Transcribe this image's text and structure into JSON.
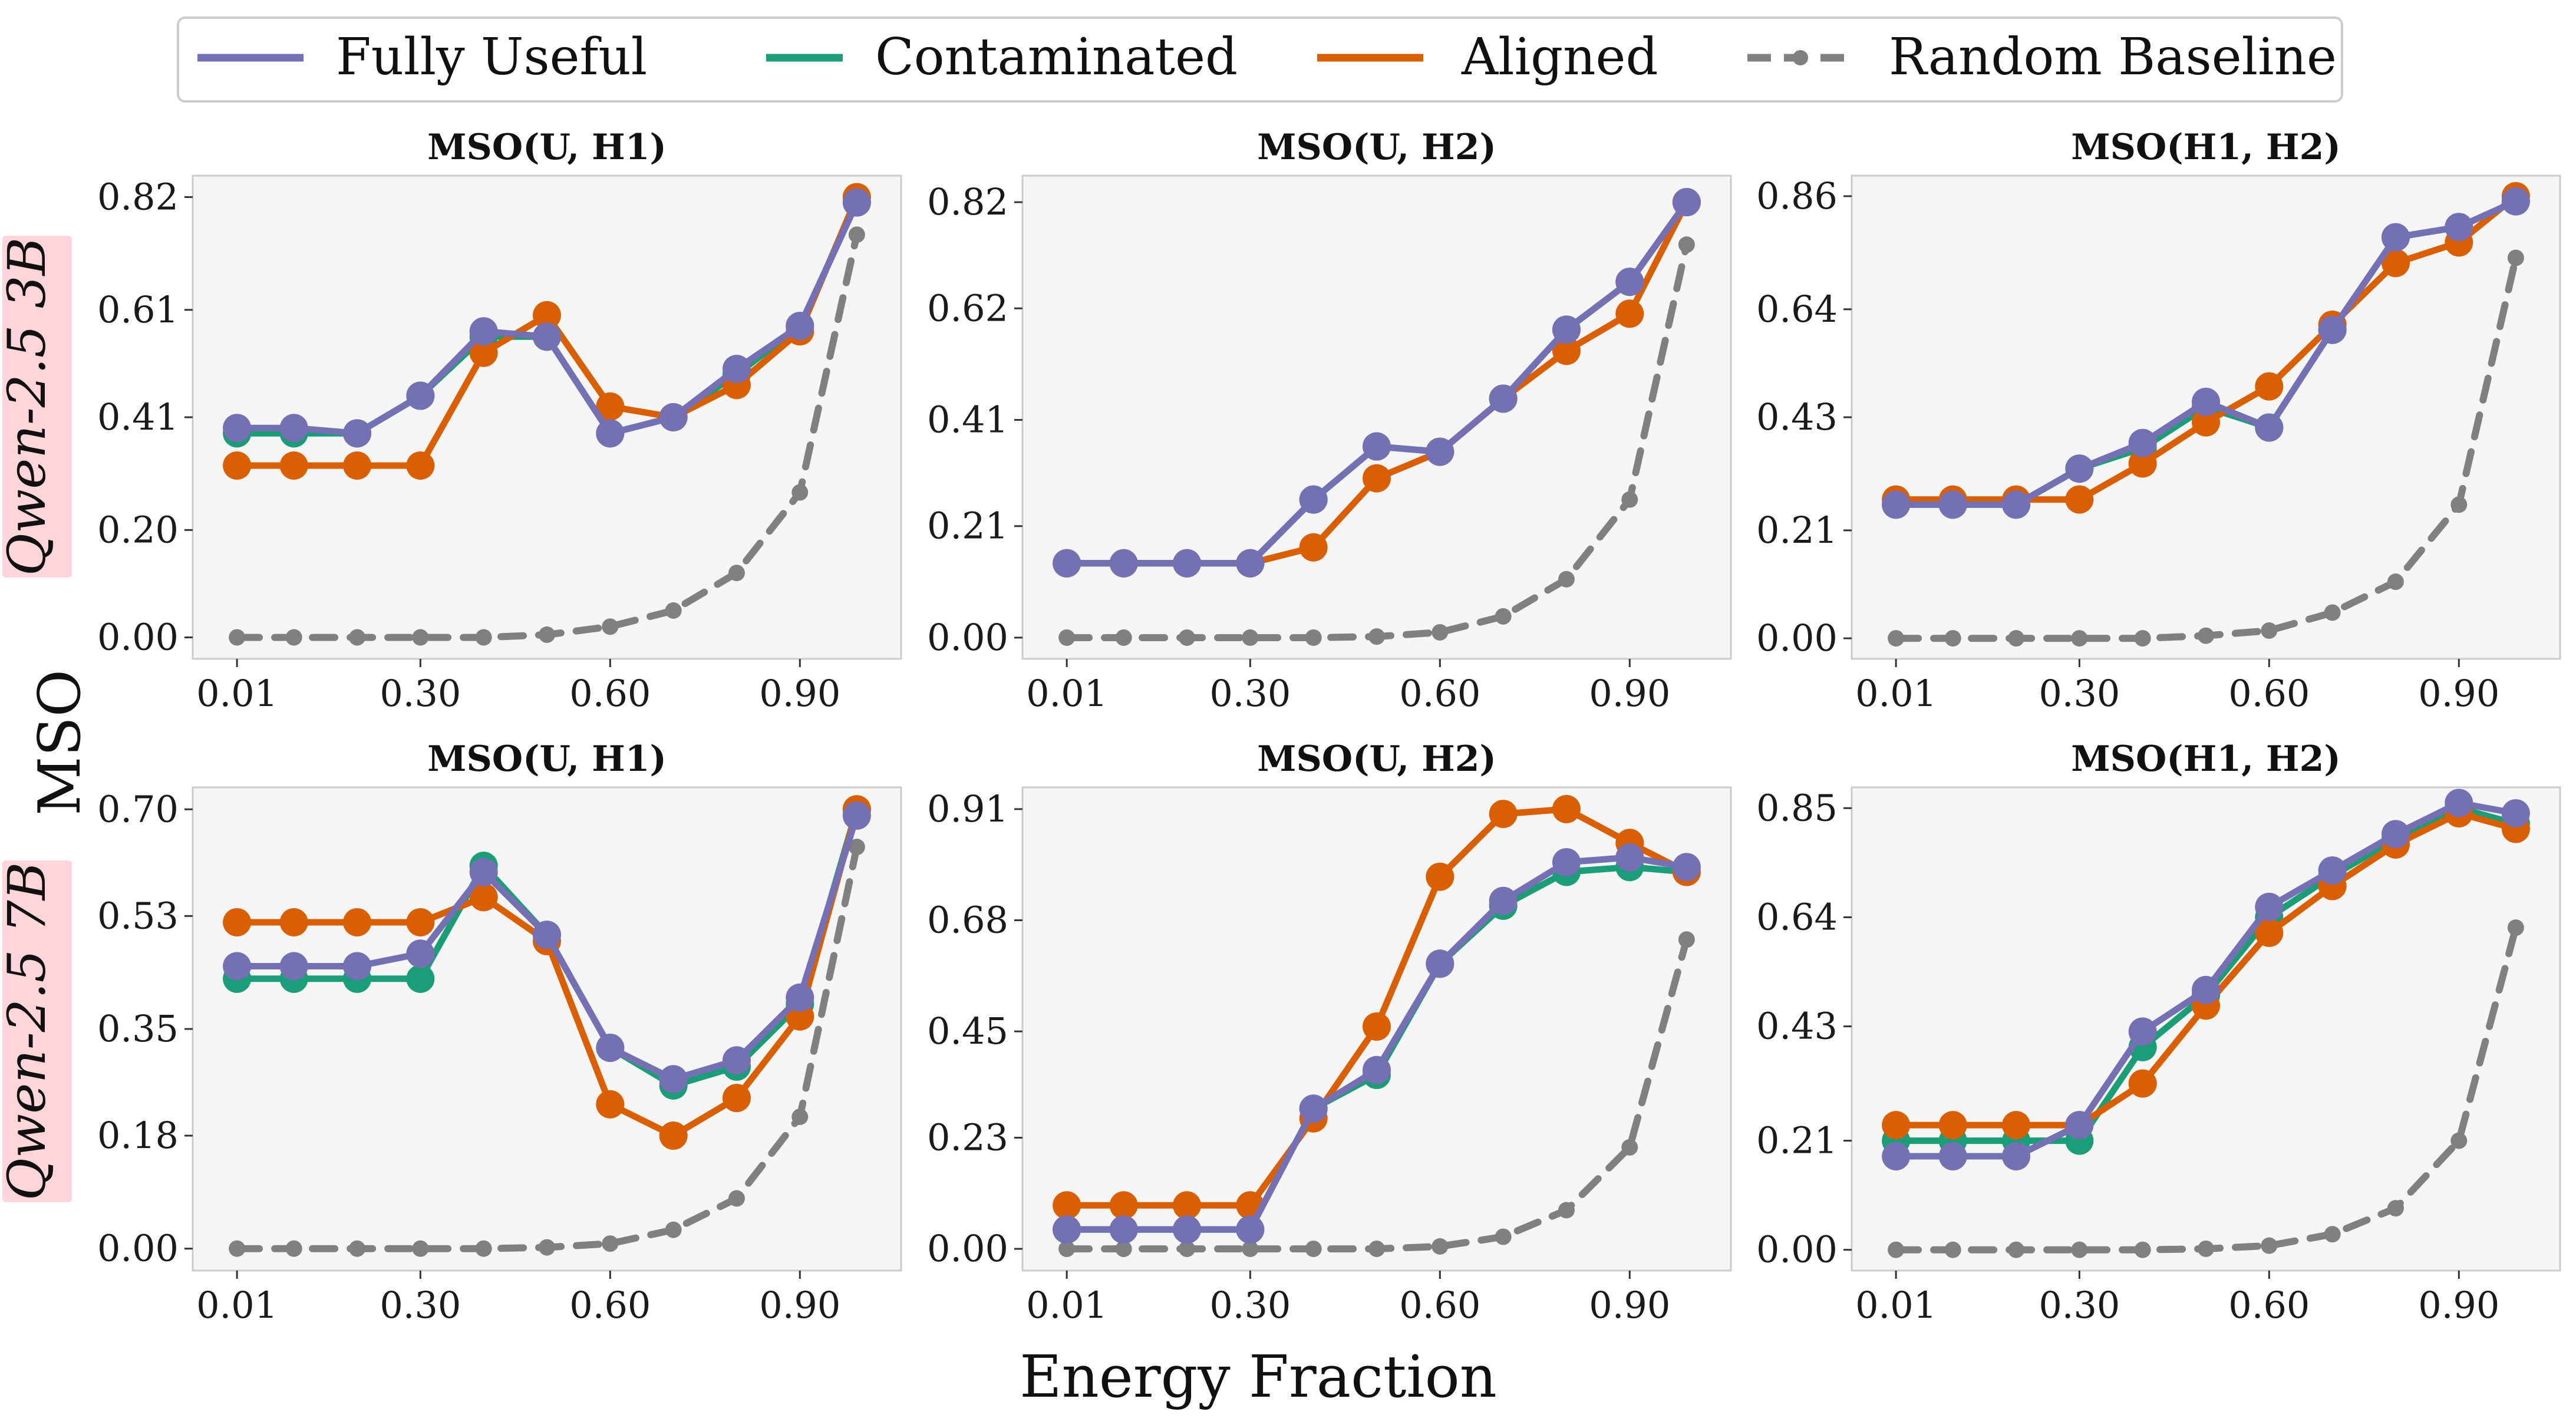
{
  "legend": [
    {
      "key": "fully_useful",
      "label": "Fully Useful"
    },
    {
      "key": "contaminated",
      "label": "Contaminated"
    },
    {
      "key": "aligned",
      "label": "Aligned"
    },
    {
      "key": "random",
      "label": "Random Baseline"
    }
  ],
  "colors": {
    "fully_useful": "#7570b3",
    "contaminated": "#1b9e77",
    "aligned": "#d95f02",
    "random": "#808080",
    "row_label_bg": "#ffd5dc",
    "panel_bg": "#f5f5f5"
  },
  "xlabel": "Energy Fraction",
  "ylabel": "MSO",
  "rows": [
    {
      "label": "Qwen-2.5 3B"
    },
    {
      "label": "Qwen-2.5 7B"
    }
  ],
  "chart_data": [
    {
      "type": "line",
      "title": "MSO(U, H1)",
      "row": 0,
      "col": 0,
      "x": [
        0.01,
        0.1,
        0.2,
        0.3,
        0.4,
        0.5,
        0.6,
        0.7,
        0.8,
        0.9,
        0.99
      ],
      "xticks": [
        0.01,
        0.3,
        0.6,
        0.9
      ],
      "xtick_labels": [
        "0.01",
        "0.30",
        "0.60",
        "0.90"
      ],
      "yticks": [
        0.0,
        0.2,
        0.41,
        0.61,
        0.82
      ],
      "ytick_labels": [
        "0.00",
        "0.20",
        "0.41",
        "0.61",
        "0.82"
      ],
      "ylim": [
        -0.04,
        0.86
      ],
      "xlim": [
        -0.06,
        1.06
      ],
      "series": [
        {
          "key": "contaminated",
          "name": "Contaminated",
          "values": [
            0.38,
            0.38,
            0.38,
            0.45,
            0.56,
            0.56,
            0.38,
            0.41,
            0.49,
            0.58,
            0.81
          ]
        },
        {
          "key": "aligned",
          "name": "Aligned",
          "values": [
            0.32,
            0.32,
            0.32,
            0.32,
            0.53,
            0.6,
            0.43,
            0.41,
            0.47,
            0.57,
            0.82
          ]
        },
        {
          "key": "fully_useful",
          "name": "Fully Useful",
          "values": [
            0.39,
            0.39,
            0.38,
            0.45,
            0.57,
            0.56,
            0.38,
            0.41,
            0.5,
            0.58,
            0.81
          ]
        },
        {
          "key": "random",
          "name": "Random Baseline",
          "values": [
            0.0,
            0.0,
            0.0,
            0.0,
            0.0,
            0.005,
            0.02,
            0.05,
            0.12,
            0.27,
            0.75
          ]
        }
      ]
    },
    {
      "type": "line",
      "title": "MSO(U, H2)",
      "row": 0,
      "col": 1,
      "x": [
        0.01,
        0.1,
        0.2,
        0.3,
        0.4,
        0.5,
        0.6,
        0.7,
        0.8,
        0.9,
        0.99
      ],
      "xticks": [
        0.01,
        0.3,
        0.6,
        0.9
      ],
      "xtick_labels": [
        "0.01",
        "0.30",
        "0.60",
        "0.90"
      ],
      "yticks": [
        0.0,
        0.21,
        0.41,
        0.62,
        0.82
      ],
      "ytick_labels": [
        "0.00",
        "0.21",
        "0.41",
        "0.62",
        "0.82"
      ],
      "ylim": [
        -0.04,
        0.87
      ],
      "xlim": [
        -0.06,
        1.06
      ],
      "series": [
        {
          "key": "contaminated",
          "name": "Contaminated",
          "values": [
            0.14,
            0.14,
            0.14,
            0.14,
            0.26,
            0.36,
            0.35,
            0.45,
            0.58,
            0.67,
            0.82
          ]
        },
        {
          "key": "aligned",
          "name": "Aligned",
          "values": [
            0.14,
            0.14,
            0.14,
            0.14,
            0.17,
            0.3,
            0.35,
            0.45,
            0.54,
            0.61,
            0.82
          ]
        },
        {
          "key": "fully_useful",
          "name": "Fully Useful",
          "values": [
            0.14,
            0.14,
            0.14,
            0.14,
            0.26,
            0.36,
            0.35,
            0.45,
            0.58,
            0.67,
            0.82
          ]
        },
        {
          "key": "random",
          "name": "Random Baseline",
          "values": [
            0.0,
            0.0,
            0.0,
            0.0,
            0.0,
            0.002,
            0.01,
            0.04,
            0.11,
            0.26,
            0.74
          ]
        }
      ]
    },
    {
      "type": "line",
      "title": "MSO(H1, H2)",
      "row": 0,
      "col": 2,
      "x": [
        0.01,
        0.1,
        0.2,
        0.3,
        0.4,
        0.5,
        0.6,
        0.7,
        0.8,
        0.9,
        0.99
      ],
      "xticks": [
        0.01,
        0.3,
        0.6,
        0.9
      ],
      "xtick_labels": [
        "0.01",
        "0.30",
        "0.60",
        "0.90"
      ],
      "yticks": [
        0.0,
        0.21,
        0.43,
        0.64,
        0.86
      ],
      "ytick_labels": [
        "0.00",
        "0.21",
        "0.43",
        "0.64",
        "0.86"
      ],
      "ylim": [
        -0.04,
        0.9
      ],
      "xlim": [
        -0.06,
        1.06
      ],
      "series": [
        {
          "key": "contaminated",
          "name": "Contaminated",
          "values": [
            0.26,
            0.26,
            0.26,
            0.33,
            0.37,
            0.45,
            0.41,
            0.6,
            0.78,
            0.8,
            0.85
          ]
        },
        {
          "key": "aligned",
          "name": "Aligned",
          "values": [
            0.27,
            0.27,
            0.27,
            0.27,
            0.34,
            0.42,
            0.49,
            0.61,
            0.73,
            0.77,
            0.86
          ]
        },
        {
          "key": "fully_useful",
          "name": "Fully Useful",
          "values": [
            0.26,
            0.26,
            0.26,
            0.33,
            0.38,
            0.46,
            0.41,
            0.6,
            0.78,
            0.8,
            0.85
          ]
        },
        {
          "key": "random",
          "name": "Random Baseline",
          "values": [
            0.0,
            0.0,
            0.0,
            0.0,
            0.0,
            0.005,
            0.015,
            0.05,
            0.11,
            0.26,
            0.74
          ]
        }
      ]
    },
    {
      "type": "line",
      "title": "MSO(U, H1)",
      "row": 1,
      "col": 0,
      "x": [
        0.01,
        0.1,
        0.2,
        0.3,
        0.4,
        0.5,
        0.6,
        0.7,
        0.8,
        0.9,
        0.99
      ],
      "xticks": [
        0.01,
        0.3,
        0.6,
        0.9
      ],
      "xtick_labels": [
        "0.01",
        "0.30",
        "0.60",
        "0.90"
      ],
      "yticks": [
        0.0,
        0.18,
        0.35,
        0.53,
        0.7
      ],
      "ytick_labels": [
        "0.00",
        "0.18",
        "0.35",
        "0.53",
        "0.70"
      ],
      "ylim": [
        -0.035,
        0.735
      ],
      "xlim": [
        -0.06,
        1.06
      ],
      "series": [
        {
          "key": "contaminated",
          "name": "Contaminated",
          "values": [
            0.43,
            0.43,
            0.43,
            0.43,
            0.61,
            0.5,
            0.32,
            0.26,
            0.29,
            0.39,
            0.7
          ]
        },
        {
          "key": "aligned",
          "name": "Aligned",
          "values": [
            0.52,
            0.52,
            0.52,
            0.52,
            0.56,
            0.49,
            0.23,
            0.18,
            0.24,
            0.37,
            0.7
          ]
        },
        {
          "key": "fully_useful",
          "name": "Fully Useful",
          "values": [
            0.45,
            0.45,
            0.45,
            0.47,
            0.6,
            0.5,
            0.32,
            0.27,
            0.3,
            0.4,
            0.69
          ]
        },
        {
          "key": "random",
          "name": "Random Baseline",
          "values": [
            0.0,
            0.0,
            0.0,
            0.0,
            0.0,
            0.002,
            0.008,
            0.03,
            0.08,
            0.21,
            0.64
          ]
        }
      ]
    },
    {
      "type": "line",
      "title": "MSO(U, H2)",
      "row": 1,
      "col": 1,
      "x": [
        0.01,
        0.1,
        0.2,
        0.3,
        0.4,
        0.5,
        0.6,
        0.7,
        0.8,
        0.9,
        0.99
      ],
      "xticks": [
        0.01,
        0.3,
        0.6,
        0.9
      ],
      "xtick_labels": [
        "0.01",
        "0.30",
        "0.60",
        "0.90"
      ],
      "yticks": [
        0.0,
        0.23,
        0.45,
        0.68,
        0.91
      ],
      "ytick_labels": [
        "0.00",
        "0.23",
        "0.45",
        "0.68",
        "0.91"
      ],
      "ylim": [
        -0.045,
        0.955
      ],
      "xlim": [
        -0.06,
        1.06
      ],
      "series": [
        {
          "key": "contaminated",
          "name": "Contaminated",
          "values": [
            0.04,
            0.04,
            0.04,
            0.04,
            0.29,
            0.36,
            0.59,
            0.71,
            0.78,
            0.79,
            0.78
          ]
        },
        {
          "key": "aligned",
          "name": "Aligned",
          "values": [
            0.09,
            0.09,
            0.09,
            0.09,
            0.27,
            0.46,
            0.77,
            0.9,
            0.91,
            0.84,
            0.78
          ]
        },
        {
          "key": "fully_useful",
          "name": "Fully Useful",
          "values": [
            0.04,
            0.04,
            0.04,
            0.04,
            0.29,
            0.37,
            0.59,
            0.72,
            0.8,
            0.81,
            0.79
          ]
        },
        {
          "key": "random",
          "name": "Random Baseline",
          "values": [
            0.0,
            0.0,
            0.0,
            0.0,
            0.0,
            0.0,
            0.005,
            0.025,
            0.08,
            0.21,
            0.64
          ]
        }
      ]
    },
    {
      "type": "line",
      "title": "MSO(H1, H2)",
      "row": 1,
      "col": 2,
      "x": [
        0.01,
        0.1,
        0.2,
        0.3,
        0.4,
        0.5,
        0.6,
        0.7,
        0.8,
        0.9,
        0.99
      ],
      "xticks": [
        0.01,
        0.3,
        0.6,
        0.9
      ],
      "xtick_labels": [
        "0.01",
        "0.30",
        "0.60",
        "0.90"
      ],
      "yticks": [
        0.0,
        0.21,
        0.43,
        0.64,
        0.85
      ],
      "ytick_labels": [
        "0.00",
        "0.21",
        "0.43",
        "0.64",
        "0.85"
      ],
      "ylim": [
        -0.04,
        0.89
      ],
      "xlim": [
        -0.06,
        1.06
      ],
      "series": [
        {
          "key": "contaminated",
          "name": "Contaminated",
          "values": [
            0.21,
            0.21,
            0.21,
            0.21,
            0.39,
            0.49,
            0.64,
            0.72,
            0.79,
            0.85,
            0.82
          ]
        },
        {
          "key": "aligned",
          "name": "Aligned",
          "values": [
            0.24,
            0.24,
            0.24,
            0.24,
            0.32,
            0.47,
            0.61,
            0.7,
            0.78,
            0.84,
            0.81
          ]
        },
        {
          "key": "fully_useful",
          "name": "Fully Useful",
          "values": [
            0.18,
            0.18,
            0.18,
            0.24,
            0.42,
            0.5,
            0.66,
            0.73,
            0.8,
            0.86,
            0.84
          ]
        },
        {
          "key": "random",
          "name": "Random Baseline",
          "values": [
            0.0,
            0.0,
            0.0,
            0.0,
            0.0,
            0.002,
            0.008,
            0.03,
            0.08,
            0.21,
            0.62
          ]
        }
      ]
    }
  ]
}
